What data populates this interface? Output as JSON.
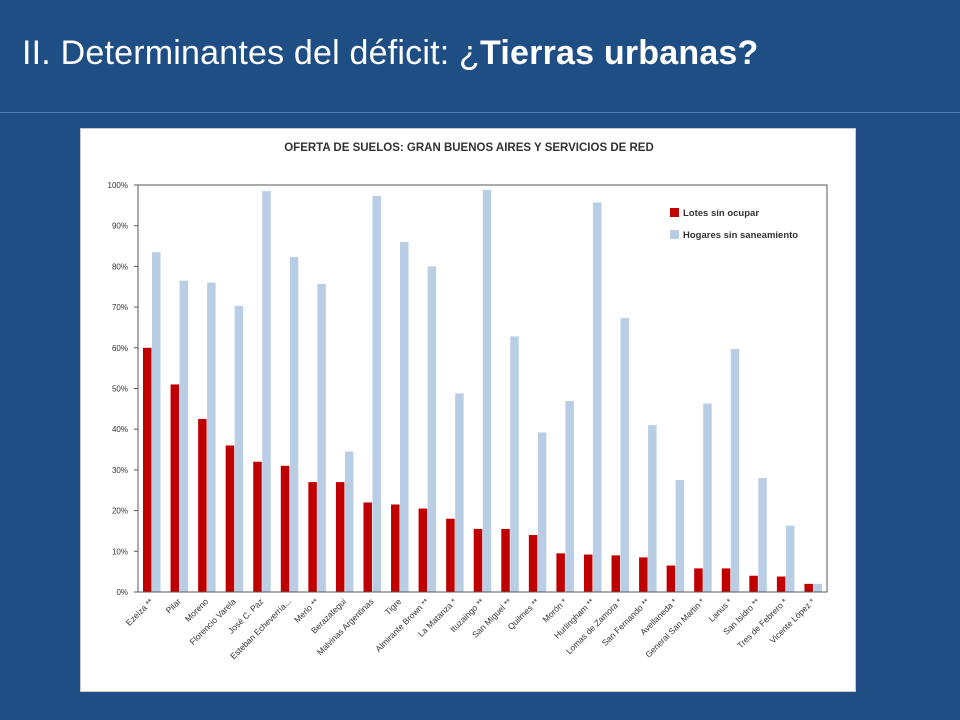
{
  "slide": {
    "title_prefix": "II. Determinantes del déficit: ¿",
    "title_bold": "Tierras urbanas?"
  },
  "colors": {
    "background": "#1f4e85",
    "series_lotes": "#c00000",
    "series_hogares": "#b9cde5"
  },
  "chart_data": {
    "type": "bar",
    "title": "OFERTA DE SUELOS: GRAN BUENOS AIRES Y SERVICIOS DE RED",
    "xlabel": "",
    "ylabel": "",
    "ylim": [
      0,
      100
    ],
    "yticks": [
      "0%",
      "10%",
      "20%",
      "30%",
      "40%",
      "50%",
      "60%",
      "70%",
      "80%",
      "90%",
      "100%"
    ],
    "grid": false,
    "legend_position": "top-right",
    "categories": [
      "Ezeiza **",
      "Pilar",
      "Moreno",
      "Florencio Varela",
      "José C. Paz",
      "Esteban Echeverría...",
      "Merlo **",
      "Berazategui",
      "Malvinas Argentinas",
      "Tigre",
      "Almirante Brown **",
      "La Matanza *",
      "Ituzaingo **",
      "San Miguel **",
      "Quilmes **",
      "Morón *",
      "Hurlingham **",
      "Lomas de Zamora *",
      "San Fernando **",
      "Avellaneda *",
      "General San Martin *",
      "Lanus *",
      "San Isidro **",
      "Tres de Febrero *",
      "Vicente López *"
    ],
    "series": [
      {
        "name": "Lotes sin ocupar",
        "color": "#c00000",
        "values": [
          60,
          51,
          42.5,
          36,
          32,
          31,
          27,
          27,
          22,
          21.5,
          20.5,
          18,
          15.5,
          15.5,
          14,
          9.5,
          9.2,
          9,
          8.5,
          6.5,
          5.8,
          5.8,
          4,
          3.8,
          2
        ]
      },
      {
        "name": "Hogares sin saneamiento",
        "color": "#b9cde5",
        "values": [
          83.5,
          76.5,
          76,
          70.3,
          98.5,
          82.3,
          75.7,
          34.5,
          97.3,
          86,
          80,
          48.8,
          98.8,
          62.8,
          39.2,
          46.9,
          95.7,
          67.3,
          41,
          27.5,
          46.3,
          59.7,
          28,
          16.3,
          2
        ]
      }
    ]
  }
}
